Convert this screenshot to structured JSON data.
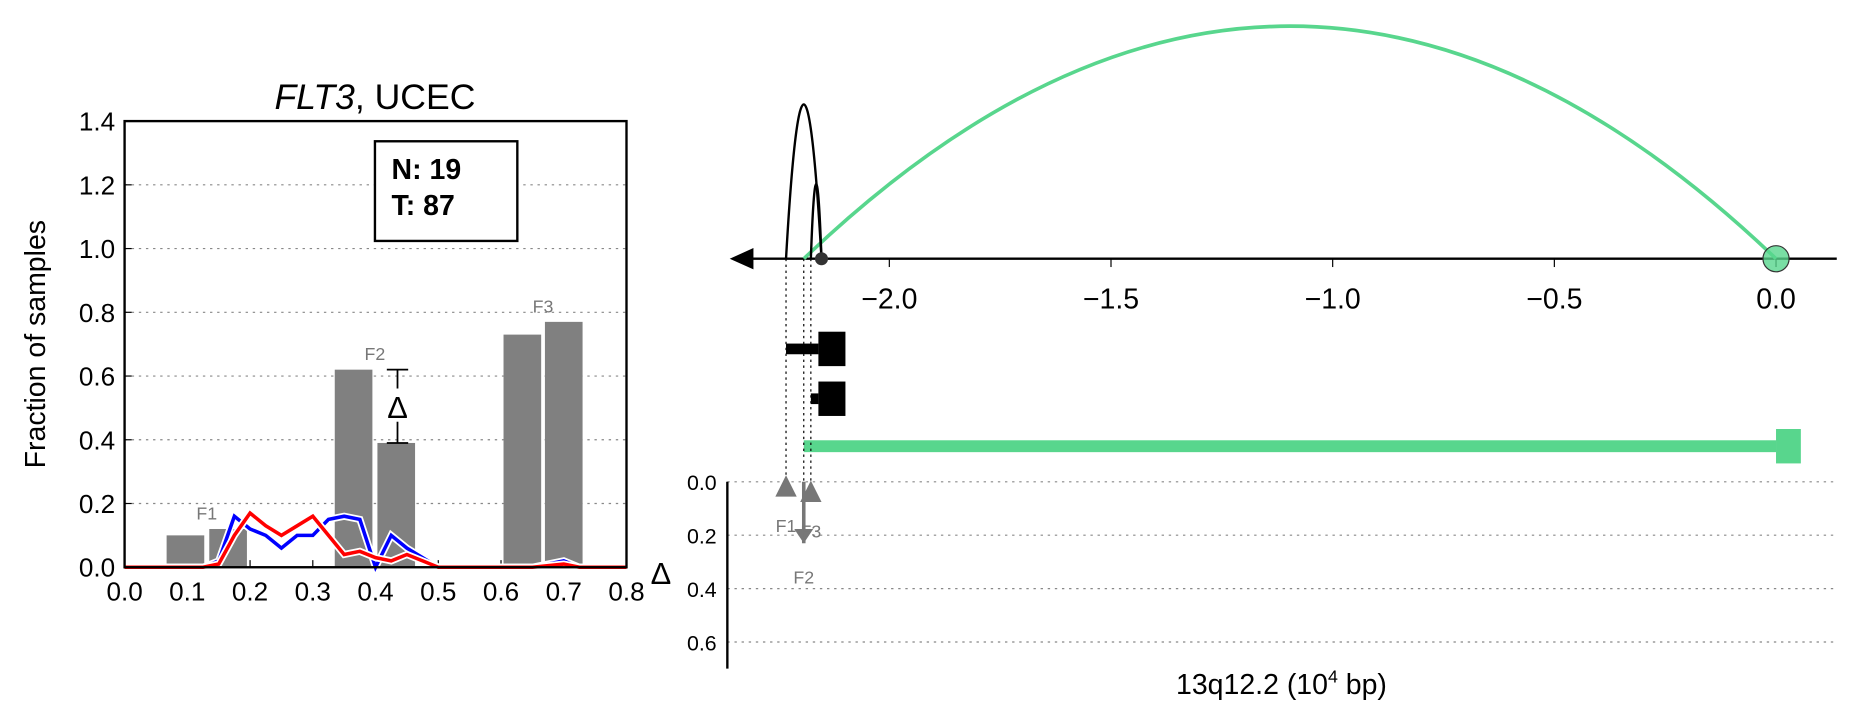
{
  "chart_data": [
    {
      "type": "bar",
      "title": {
        "gene": "FLT3",
        "rest": ", UCEC"
      },
      "y_label": "Fraction of samples",
      "xlim": [
        0,
        0.8
      ],
      "xticks": [
        {
          "value": 0,
          "label": "0.0"
        },
        0.1,
        0.2,
        0.3,
        0.4,
        0.5,
        0.6,
        0.7,
        0.8
      ],
      "ylim": [
        0,
        1.4
      ],
      "yticks": [
        {
          "value": 0,
          "label": "0.0"
        },
        0.2,
        0.4,
        0.6,
        0.8,
        {
          "value": 1,
          "label": "1.0"
        },
        1.2,
        1.4
      ],
      "grid": true,
      "bars": {
        "x": [
          0.097,
          0.165,
          0.365,
          0.433,
          0.634,
          0.7
        ],
        "width": 0.06,
        "values": [
          0.1,
          0.12,
          0.62,
          0.39,
          0.73,
          0.77
        ],
        "color": "#808080"
      },
      "bar_labels": [
        "F1",
        "F2",
        "F3"
      ],
      "series": [
        {
          "color": "#0000ff",
          "x": [
            0,
            0.1,
            0.125,
            0.15,
            0.175,
            0.2,
            0.225,
            0.25,
            0.275,
            0.3,
            0.325,
            0.35,
            0.375,
            0.4,
            0.425,
            0.45,
            0.475,
            0.5,
            0.6,
            0.65,
            0.7,
            0.725,
            0.8
          ],
          "values": [
            0,
            0,
            0,
            0.02,
            0.16,
            0.12,
            0.1,
            0.06,
            0.1,
            0.1,
            0.15,
            0.16,
            0.15,
            0,
            0.1,
            0.06,
            0.03,
            0,
            0,
            0,
            0.02,
            0,
            0
          ]
        },
        {
          "color": "#ff0000",
          "x": [
            0,
            0.1,
            0.125,
            0.15,
            0.175,
            0.2,
            0.225,
            0.25,
            0.275,
            0.3,
            0.325,
            0.35,
            0.375,
            0.4,
            0.425,
            0.45,
            0.475,
            0.5,
            0.6,
            0.65,
            0.7,
            0.725,
            0.8
          ],
          "values": [
            0,
            0,
            0,
            0.01,
            0.1,
            0.17,
            0.13,
            0.1,
            0.13,
            0.16,
            0.1,
            0.04,
            0.05,
            0.03,
            0.02,
            0.04,
            0.02,
            0,
            0,
            0,
            0.01,
            0,
            0
          ]
        }
      ],
      "legend_box": [
        "N: 19",
        "T: 87"
      ],
      "delta": {
        "x": 0.435,
        "low": 0.39,
        "high": 0.62,
        "label": "Δ"
      }
    },
    {
      "type": "genome",
      "xlim": [
        -2.36,
        0.137
      ],
      "xticks": [
        {
          "value": -2,
          "label": "−2.0"
        },
        {
          "value": -1.5,
          "label": "−1.5"
        },
        {
          "value": -1,
          "label": "−1.0"
        },
        {
          "value": -0.5,
          "label": "−0.5"
        },
        {
          "value": 0,
          "label": "0.0"
        }
      ],
      "x_label": {
        "text": "13q12.2 (10",
        "sup": "4",
        "tail": " bp)"
      },
      "y_label": "Δ",
      "ylim": [
        0,
        0.7
      ],
      "yticks": [
        {
          "value": 0,
          "label": "0.0"
        },
        0.2,
        0.4,
        0.6
      ],
      "links": [
        {
          "from": -2.193,
          "to": 0,
          "color": "#58d68d"
        },
        {
          "from": -2.233,
          "to": -2.153,
          "color": "#000000"
        },
        {
          "from": -2.177,
          "to": -2.153,
          "color": "#000000"
        }
      ],
      "anchors": [
        {
          "x": -2.153,
          "color": "#333333"
        },
        {
          "x": 0,
          "color": "#58d68d"
        }
      ],
      "genes": [
        {
          "start": -2.233,
          "end": -2.099,
          "thick_start": -2.16,
          "color": "#000000"
        },
        {
          "start": -2.177,
          "end": -2.099,
          "thick_start": -2.16,
          "color": "#000000"
        },
        {
          "start": -2.193,
          "end": 0.056,
          "thick_start": 0,
          "color": "#58d68d"
        }
      ],
      "features": [
        {
          "label": "F1",
          "x": -2.233,
          "delta": 0.02
        },
        {
          "label": "F2",
          "x": -2.193,
          "delta": 0.23
        },
        {
          "label": "F3",
          "x": -2.177,
          "delta": 0.04
        }
      ]
    }
  ]
}
